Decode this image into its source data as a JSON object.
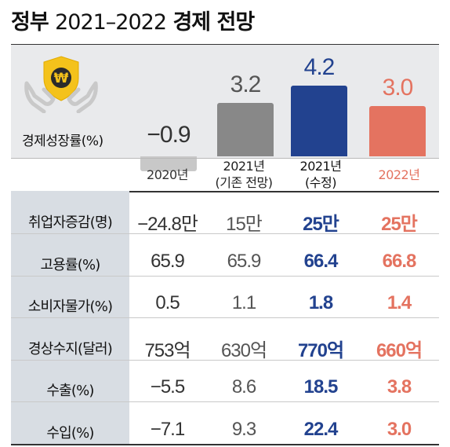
{
  "title_prefix": "정부",
  "title_years": "2021–2022",
  "title_suffix": "경제 전망",
  "gdp_label": "경제성장률(%)",
  "columns": [
    {
      "line1": "2020년",
      "line2": ""
    },
    {
      "line1": "2021년",
      "line2": "(기존 전망)"
    },
    {
      "line1": "2021년",
      "line2": "(수정)"
    },
    {
      "line1": "2022년",
      "line2": ""
    }
  ],
  "colors": {
    "bar_2020": "#c8c8c8",
    "bar_2021_old": "#888888",
    "bar_2021_new": "#22428f",
    "bar_2022": "#e47360"
  },
  "icon": "won-shield-hands-icon",
  "icon_symbol": "₩",
  "chart_data": {
    "type": "bar",
    "title": "정부 2021–2022 경제 전망",
    "ylabel": "경제성장률(%)",
    "categories": [
      "2020년",
      "2021년 (기존 전망)",
      "2021년 (수정)",
      "2022년"
    ],
    "values": [
      -0.9,
      3.2,
      4.2,
      3.0
    ],
    "value_labels": [
      "−0.9",
      "3.2",
      "4.2",
      "3.0"
    ],
    "ylim": [
      -1.5,
      5
    ],
    "grid": false
  },
  "table": {
    "rows": [
      {
        "label": "취업자증감(명)",
        "values": [
          "−24.8만",
          "15만",
          "25만",
          "25만"
        ]
      },
      {
        "label": "고용률(%)",
        "values": [
          "65.9",
          "65.9",
          "66.4",
          "66.8"
        ]
      },
      {
        "label": "소비자물가(%)",
        "values": [
          "0.5",
          "1.1",
          "1.8",
          "1.4"
        ]
      },
      {
        "label": "경상수지(달러)",
        "values": [
          "753억",
          "630억",
          "770억",
          "660억"
        ]
      },
      {
        "label": "수출(%)",
        "values": [
          "−5.5",
          "8.6",
          "18.5",
          "3.8"
        ]
      },
      {
        "label": "수입(%)",
        "values": [
          "−7.1",
          "9.3",
          "22.4",
          "3.0"
        ]
      }
    ]
  }
}
